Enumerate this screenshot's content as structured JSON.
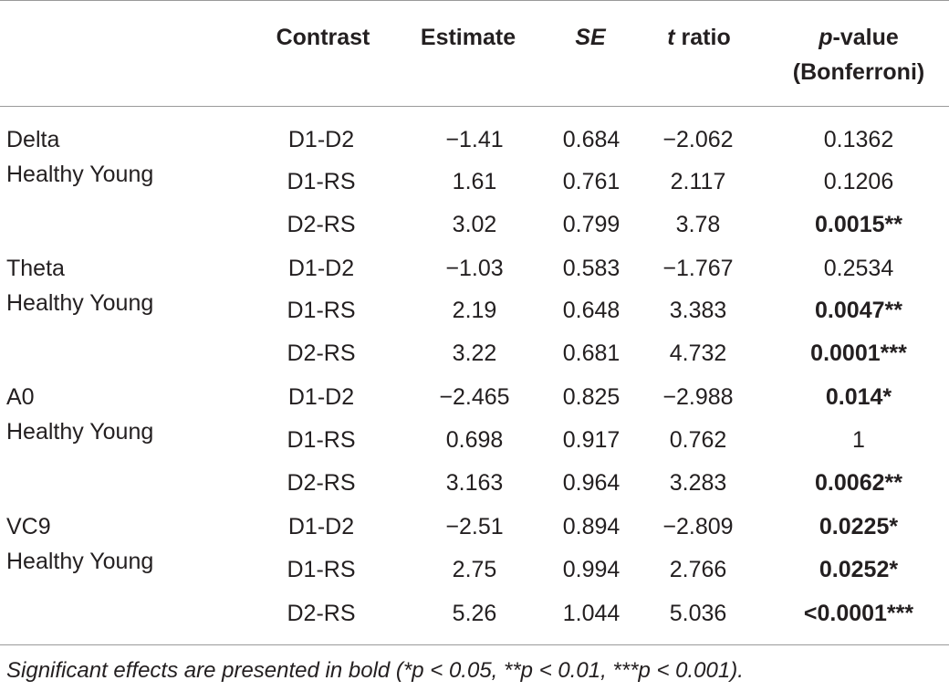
{
  "table": {
    "headers": {
      "contrast": "Contrast",
      "estimate": "Estimate",
      "se": "SE",
      "t_italic": "t",
      "t_rest": " ratio",
      "p_italic": "p",
      "p_rest": "-value",
      "p_line2": "(Bonferroni)"
    },
    "groups": [
      {
        "name": "Delta",
        "sub": "Healthy Young"
      },
      {
        "name": "Theta",
        "sub": "Healthy Young"
      },
      {
        "name": "A0",
        "sub": "Healthy Young"
      },
      {
        "name": "VC9",
        "sub": "Healthy Young"
      }
    ],
    "rows": [
      {
        "contrast": "D1-D2",
        "estimate": "−1.41",
        "se": "0.684",
        "t": "−2.062",
        "p": "0.1362",
        "bold": false
      },
      {
        "contrast": "D1-RS",
        "estimate": "1.61",
        "se": "0.761",
        "t": "2.117",
        "p": "0.1206",
        "bold": false
      },
      {
        "contrast": "D2-RS",
        "estimate": "3.02",
        "se": "0.799",
        "t": "3.78",
        "p": "0.0015**",
        "bold": true
      },
      {
        "contrast": "D1-D2",
        "estimate": "−1.03",
        "se": "0.583",
        "t": "−1.767",
        "p": "0.2534",
        "bold": false
      },
      {
        "contrast": "D1-RS",
        "estimate": "2.19",
        "se": "0.648",
        "t": "3.383",
        "p": "0.0047**",
        "bold": true
      },
      {
        "contrast": "D2-RS",
        "estimate": "3.22",
        "se": "0.681",
        "t": "4.732",
        "p": "0.0001***",
        "bold": true
      },
      {
        "contrast": "D1-D2",
        "estimate": "−2.465",
        "se": "0.825",
        "t": "−2.988",
        "p": "0.014*",
        "bold": true
      },
      {
        "contrast": "D1-RS",
        "estimate": "0.698",
        "se": "0.917",
        "t": "0.762",
        "p": "1",
        "bold": false
      },
      {
        "contrast": "D2-RS",
        "estimate": "3.163",
        "se": "0.964",
        "t": "3.283",
        "p": "0.0062**",
        "bold": true
      },
      {
        "contrast": "D1-D2",
        "estimate": "−2.51",
        "se": "0.894",
        "t": "−2.809",
        "p": "0.0225*",
        "bold": true
      },
      {
        "contrast": "D1-RS",
        "estimate": "2.75",
        "se": "0.994",
        "t": "2.766",
        "p": "0.0252*",
        "bold": true
      },
      {
        "contrast": "D2-RS",
        "estimate": "5.26",
        "se": "1.044",
        "t": "5.036",
        "p": "<0.0001***",
        "bold": true
      }
    ]
  },
  "footnote": "Significant effects are presented in bold (*p < 0.05, **p < 0.01, ***p < 0.001)."
}
